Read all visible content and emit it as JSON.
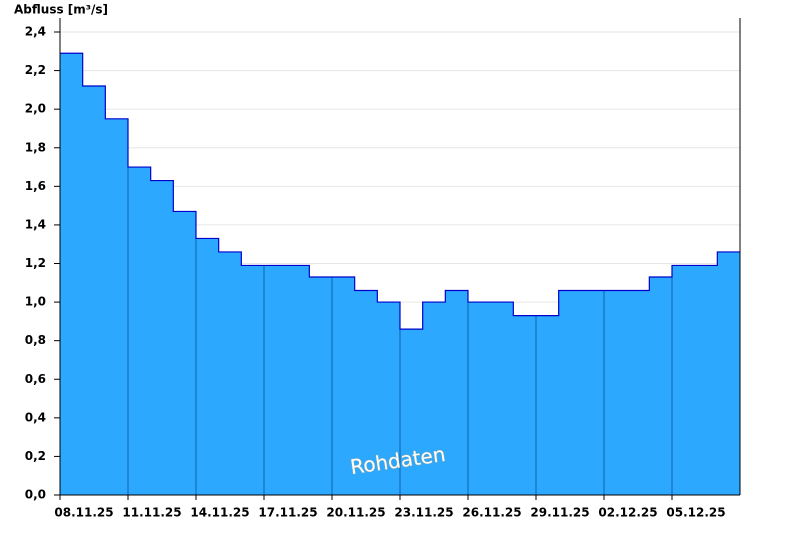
{
  "chart_data": {
    "type": "area",
    "title": "Abfluss [m³/s]",
    "annotation": "Rohdaten",
    "x": [
      "08.11.25",
      "09.11.25",
      "10.11.25",
      "11.11.25",
      "12.11.25",
      "13.11.25",
      "14.11.25",
      "15.11.25",
      "16.11.25",
      "17.11.25",
      "18.11.25",
      "19.11.25",
      "20.11.25",
      "21.11.25",
      "22.11.25",
      "23.11.25",
      "24.11.25",
      "25.11.25",
      "26.11.25",
      "27.11.25",
      "28.11.25",
      "29.11.25",
      "30.11.25",
      "01.12.25",
      "02.12.25",
      "03.12.25",
      "04.12.25",
      "05.12.25",
      "06.12.25",
      "07.12.25"
    ],
    "values": [
      2.29,
      2.12,
      1.95,
      1.7,
      1.63,
      1.47,
      1.33,
      1.26,
      1.19,
      1.19,
      1.19,
      1.13,
      1.13,
      1.06,
      1.0,
      0.86,
      1.0,
      1.06,
      1.0,
      1.0,
      0.93,
      0.93,
      1.06,
      1.06,
      1.06,
      1.06,
      1.13,
      1.19,
      1.19,
      1.26
    ],
    "color": "#2ca8ff",
    "line_color": "#0000cc",
    "xlim": [
      "08.11.25",
      "08.12.25"
    ],
    "xticks": [
      "08.11.25",
      "11.11.25",
      "14.11.25",
      "17.11.25",
      "20.11.25",
      "23.11.25",
      "26.11.25",
      "29.11.25",
      "02.12.25",
      "05.12.25"
    ],
    "ylim": [
      0,
      2.4
    ],
    "yticks": [
      {
        "value": 0,
        "label": "0,0"
      },
      {
        "value": 0.2,
        "label": "0,2"
      },
      {
        "value": 0.4,
        "label": "0,4"
      },
      {
        "value": 0.6,
        "label": "0,6"
      },
      {
        "value": 0.8,
        "label": "0,8"
      },
      {
        "value": 1,
        "label": "1,0"
      },
      {
        "value": 1.2,
        "label": "1,2"
      },
      {
        "value": 1.4,
        "label": "1,4"
      },
      {
        "value": 1.6,
        "label": "1,6"
      },
      {
        "value": 1.8,
        "label": "1,8"
      },
      {
        "value": 2,
        "label": "2,0"
      },
      {
        "value": 2.2,
        "label": "2,2"
      },
      {
        "value": 2.4,
        "label": "2,4"
      }
    ],
    "grid": true
  }
}
